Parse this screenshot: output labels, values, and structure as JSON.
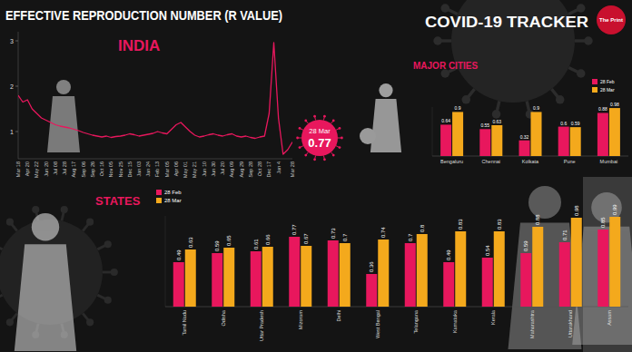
{
  "header": {
    "title": "EFFECTIVE REPRODUCTION NUMBER (R VALUE)",
    "tracker": "COVID-19 TRACKER",
    "logo": "The Print"
  },
  "chart_data": [
    {
      "type": "line",
      "title": "INDIA",
      "color": "#e8175d",
      "grid": false,
      "categories": [
        "Mar 18",
        null,
        "Apr 20",
        null,
        "May 22",
        null,
        "Jun 20",
        null,
        "Jul 08",
        null,
        "Jul 28",
        null,
        "Aug 17",
        null,
        "Sep 06",
        null,
        "Sep 26",
        null,
        "Oct 16",
        null,
        "Nov 05",
        null,
        "Nov 25",
        null,
        "Dec 15",
        null,
        "Jan 03",
        null,
        "Jan 24",
        null,
        "Feb 13",
        null,
        "Mar 05",
        null,
        "Apr 06",
        null,
        "May 01",
        null,
        "May 21",
        null,
        "Jun 10",
        null,
        "Jun 30",
        null,
        "Jul 20",
        null,
        "Aug 09",
        null,
        "Aug 29",
        null,
        "Sep 28",
        null,
        "Oct 28",
        null,
        "Dec 17",
        null,
        "Jan 4",
        null,
        null,
        "Mar 28"
      ],
      "values": [
        1.8,
        1.65,
        1.7,
        1.5,
        1.4,
        1.3,
        1.25,
        1.2,
        1.15,
        1.12,
        1.1,
        1.08,
        1.05,
        1.02,
        0.98,
        0.95,
        0.92,
        0.9,
        0.88,
        0.9,
        0.87,
        0.89,
        0.9,
        0.92,
        0.95,
        0.93,
        0.9,
        0.92,
        0.94,
        0.96,
        1.0,
        0.97,
        0.95,
        1.05,
        1.15,
        1.2,
        1.1,
        1.0,
        0.92,
        0.88,
        0.9,
        0.93,
        0.95,
        0.92,
        0.9,
        0.93,
        0.95,
        0.9,
        0.88,
        0.9,
        0.87,
        0.85,
        0.88,
        0.9,
        1.4,
        2.96,
        1.3,
        0.5,
        0.6,
        0.77
      ],
      "ylim": [
        0.4,
        3.2
      ],
      "yticks": [
        1,
        2,
        3
      ],
      "annotations": [
        {
          "label": "28 Mar",
          "value": 0.77
        }
      ]
    },
    {
      "type": "bar",
      "title": "MAJOR CITIES",
      "legend": "upper right",
      "data_labels": true,
      "tick_labels": "x",
      "grid": false,
      "categories": [
        "Bengaluru",
        "Chennai",
        "Kolkata",
        "Pune",
        "Mumbai"
      ],
      "series": [
        {
          "name": "28 Feb",
          "color": "#e8175d",
          "values": [
            0.64,
            0.55,
            0.32,
            0.6,
            0.88
          ]
        },
        {
          "name": "28 Mar",
          "color": "#f4a91c",
          "values": [
            0.9,
            0.63,
            0.9,
            0.59,
            0.98
          ]
        }
      ],
      "ylim": [
        0,
        1
      ]
    },
    {
      "type": "bar",
      "title": "STATES",
      "legend": "upper left",
      "data_labels": true,
      "tick_labels": "x",
      "grid": false,
      "categories": [
        "Tamil Nadu",
        "Odisha",
        "Uttar Pradesh",
        "Mizoram",
        "Delhi",
        "West Bengal",
        "Telangana",
        "Karnataka",
        "Kerala",
        "Maharashtra",
        "Uttarakhand",
        "Assam"
      ],
      "series": [
        {
          "name": "28 Feb",
          "color": "#e8175d",
          "values": [
            0.49,
            0.59,
            0.61,
            0.77,
            0.73,
            0.36,
            0.7,
            0.49,
            0.54,
            0.59,
            0.71,
            0.85
          ]
        },
        {
          "name": "28 Mar",
          "color": "#f4a91c",
          "values": [
            0.63,
            0.65,
            0.66,
            0.67,
            0.7,
            0.74,
            0.8,
            0.83,
            0.83,
            0.88,
            0.98,
            0.99
          ]
        }
      ],
      "ylim": [
        0,
        1
      ]
    }
  ]
}
